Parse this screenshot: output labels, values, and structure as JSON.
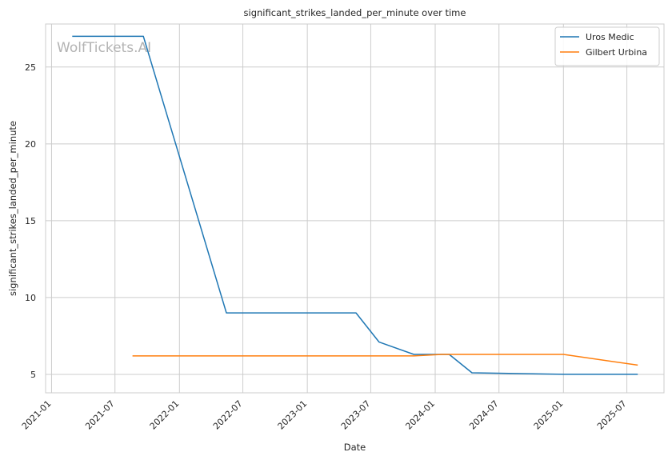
{
  "chart_data": {
    "type": "line",
    "title": "significant_strikes_landed_per_minute over time",
    "xlabel": "Date",
    "ylabel": "significant_strikes_landed_per_minute",
    "watermark": "WolfTickets.AI",
    "x_ticks": [
      "2021-01",
      "2021-07",
      "2022-01",
      "2022-07",
      "2023-01",
      "2023-07",
      "2024-01",
      "2024-07",
      "2025-01",
      "2025-07"
    ],
    "y_ticks": [
      "5",
      "10",
      "15",
      "20",
      "25"
    ],
    "xlim": [
      "2020-12-15",
      "2025-10-15"
    ],
    "ylim": [
      3.8,
      27.8
    ],
    "grid": true,
    "legend_position": "top-right",
    "series": [
      {
        "name": "Uros Medic",
        "color": "#1f77b4",
        "points": [
          {
            "x": "2021-03-01",
            "y": 27.0
          },
          {
            "x": "2021-09-20",
            "y": 27.0
          },
          {
            "x": "2022-05-15",
            "y": 9.0
          },
          {
            "x": "2023-05-20",
            "y": 9.0
          },
          {
            "x": "2023-07-25",
            "y": 7.1
          },
          {
            "x": "2023-11-01",
            "y": 6.3
          },
          {
            "x": "2024-02-10",
            "y": 6.3
          },
          {
            "x": "2024-04-15",
            "y": 5.1
          },
          {
            "x": "2025-01-01",
            "y": 5.0
          },
          {
            "x": "2025-08-01",
            "y": 5.0
          }
        ]
      },
      {
        "name": "Gilbert Urbina",
        "color": "#ff7f0e",
        "points": [
          {
            "x": "2021-08-20",
            "y": 6.2
          },
          {
            "x": "2023-11-01",
            "y": 6.2
          },
          {
            "x": "2024-01-20",
            "y": 6.3
          },
          {
            "x": "2025-01-01",
            "y": 6.3
          },
          {
            "x": "2025-08-01",
            "y": 5.6
          }
        ]
      }
    ]
  }
}
